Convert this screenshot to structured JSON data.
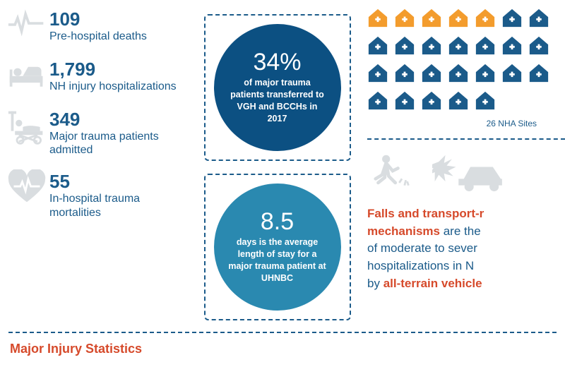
{
  "colors": {
    "primary": "#1b5b8a",
    "circle1_bg": "#0c5082",
    "circle2_bg": "#2a89b0",
    "accent": "#d64a2b",
    "orange": "#f39c2d",
    "icon_grey": "#d9dde0",
    "white": "#ffffff"
  },
  "left_stats": [
    {
      "value": "109",
      "label": "Pre-hospital deaths",
      "icon": "heartbeat"
    },
    {
      "value": "1,799",
      "label": "NH injury hospitalizations",
      "icon": "bed"
    },
    {
      "value": "349",
      "label": "Major trauma patients admitted",
      "icon": "stretcher"
    },
    {
      "value": "55",
      "label": "In-hospital trauma mortalities",
      "icon": "heart"
    }
  ],
  "circles": [
    {
      "big": "34%",
      "text": "of major trauma patients transferred to VGH and BCCHs in 2017",
      "bg": "#0c5082"
    },
    {
      "big": "8.5",
      "text": "days is the average length of stay for a major trauma patient at UHNBC",
      "bg": "#2a89b0"
    }
  ],
  "houses": {
    "total": 26,
    "orange_count": 5,
    "blue_count": 21,
    "cols": 7,
    "caption": "26 NHA Sites",
    "orange_color": "#f39c2d",
    "blue_color": "#1b5b8a"
  },
  "falls_text": {
    "l1a": "Falls and transport-r",
    "l1b": "mechanisms",
    "l1c": " are the",
    "l2": "of moderate to sever",
    "l3": "hospitalizations in N",
    "l4a": "by ",
    "l4b": "all-terrain vehicle"
  },
  "section_title": "Major Injury Statistics"
}
